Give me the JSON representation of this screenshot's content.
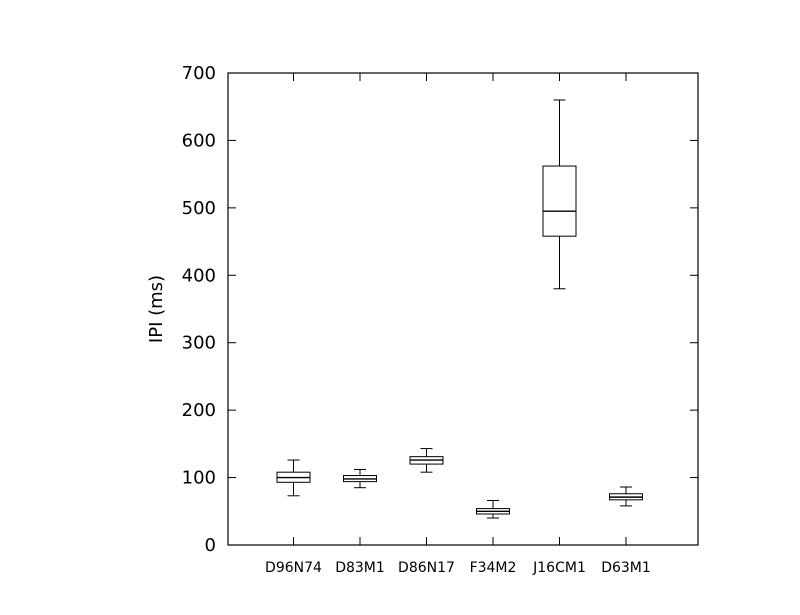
{
  "chart_data": {
    "type": "box",
    "title": "",
    "xlabel": "",
    "ylabel": "IPI (ms)",
    "ylim": [
      0,
      700
    ],
    "yticks": [
      0,
      100,
      200,
      300,
      400,
      500,
      600,
      700
    ],
    "grid": false,
    "categories": [
      "D96N74",
      "D83M1",
      "D86N17",
      "F34M2",
      "J16CM1",
      "D63M1"
    ],
    "boxes": [
      {
        "category": "D96N74",
        "whisker_low": 73,
        "q1": 93,
        "median": 100,
        "q3": 108,
        "whisker_high": 126
      },
      {
        "category": "D83M1",
        "whisker_low": 85,
        "q1": 94,
        "median": 98,
        "q3": 103,
        "whisker_high": 112
      },
      {
        "category": "D86N17",
        "whisker_low": 108,
        "q1": 120,
        "median": 126,
        "q3": 131,
        "whisker_high": 143
      },
      {
        "category": "F34M2",
        "whisker_low": 40,
        "q1": 46,
        "median": 50,
        "q3": 54,
        "whisker_high": 66
      },
      {
        "category": "J16CM1",
        "whisker_low": 380,
        "q1": 458,
        "median": 495,
        "q3": 562,
        "whisker_high": 660
      },
      {
        "category": "D63M1",
        "whisker_low": 58,
        "q1": 67,
        "median": 71,
        "q3": 76,
        "whisker_high": 86
      }
    ]
  }
}
